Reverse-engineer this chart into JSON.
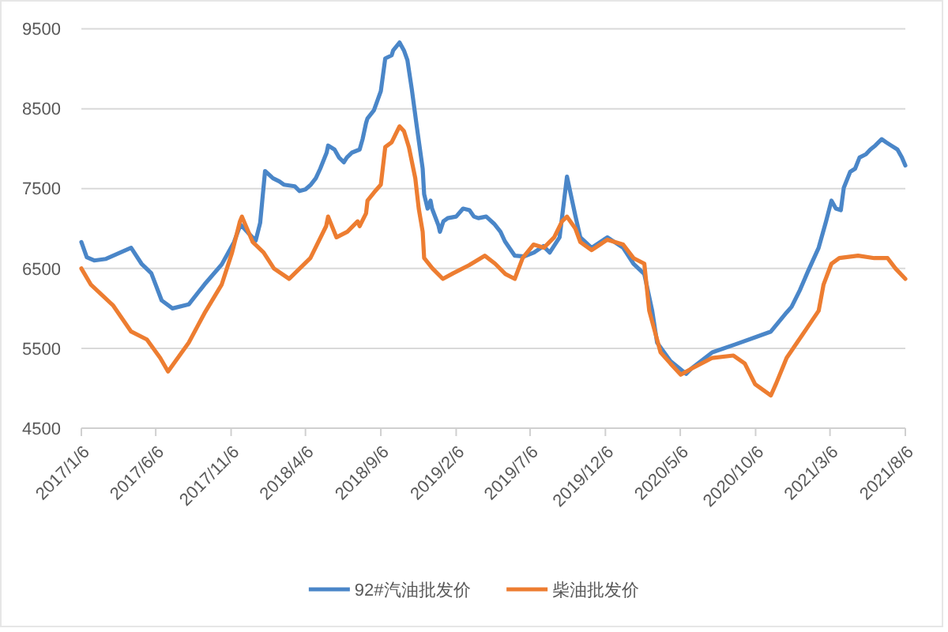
{
  "chart_data": {
    "type": "line",
    "xlim": [
      "2017-01-06",
      "2021-08-06"
    ],
    "xticks": [
      {
        "value": "2017-01-06",
        "label": "2017/1/6"
      },
      {
        "value": "2017-06-06",
        "label": "2017/6/6"
      },
      {
        "value": "2017-11-06",
        "label": "2017/11/6"
      },
      {
        "value": "2018-04-06",
        "label": "2018/4/6"
      },
      {
        "value": "2018-09-06",
        "label": "2018/9/6"
      },
      {
        "value": "2019-02-06",
        "label": "2019/2/6"
      },
      {
        "value": "2019-07-06",
        "label": "2019/7/6"
      },
      {
        "value": "2019-12-06",
        "label": "2019/12/6"
      },
      {
        "value": "2020-05-06",
        "label": "2020/5/6"
      },
      {
        "value": "2020-10-06",
        "label": "2020/10/6"
      },
      {
        "value": "2021-03-06",
        "label": "2021/3/6"
      },
      {
        "value": "2021-08-06",
        "label": "2021/8/6"
      }
    ],
    "ylim": [
      4500,
      9500
    ],
    "yticks": [
      4500,
      5500,
      6500,
      7500,
      8500,
      9500
    ],
    "grid": "y",
    "legend": "bottom",
    "line_style": "solid",
    "series": [
      {
        "name": "92#汽油批发价",
        "color": "#4a86c8",
        "x": [
          "2017-01-06",
          "2017-01-17",
          "2017-02-01",
          "2017-02-25",
          "2017-04-17",
          "2017-05-08",
          "2017-05-28",
          "2017-06-18",
          "2017-07-10",
          "2017-08-12",
          "2017-09-13",
          "2017-10-18",
          "2017-11-12",
          "2017-11-25",
          "2017-12-10",
          "2017-12-26",
          "2018-01-04",
          "2018-01-14",
          "2018-01-30",
          "2018-02-12",
          "2018-02-21",
          "2018-03-15",
          "2018-03-25",
          "2018-04-06",
          "2018-04-17",
          "2018-04-27",
          "2018-05-06",
          "2018-05-19",
          "2018-05-22",
          "2018-06-04",
          "2018-06-13",
          "2018-06-23",
          "2018-06-29",
          "2018-07-09",
          "2018-07-25",
          "2018-07-31",
          "2018-08-07",
          "2018-08-10",
          "2018-08-23",
          "2018-09-06",
          "2018-09-15",
          "2018-09-28",
          "2018-10-01",
          "2018-10-14",
          "2018-10-23",
          "2018-10-30",
          "2018-11-08",
          "2018-11-18",
          "2018-11-30",
          "2018-12-03",
          "2018-12-10",
          "2018-12-16",
          "2018-12-19",
          "2019-01-01",
          "2019-01-04",
          "2019-01-11",
          "2019-01-20",
          "2019-02-06",
          "2019-02-20",
          "2019-03-05",
          "2019-03-14",
          "2019-03-23",
          "2019-04-08",
          "2019-04-24",
          "2019-05-07",
          "2019-05-16",
          "2019-06-05",
          "2019-06-24",
          "2019-07-14",
          "2019-08-02",
          "2019-08-15",
          "2019-09-04",
          "2019-09-19",
          "2019-10-06",
          "2019-10-16",
          "2019-11-08",
          "2019-12-10",
          "2020-01-11",
          "2020-02-01",
          "2020-02-23",
          "2020-03-10",
          "2020-03-20",
          "2020-04-16",
          "2020-05-18",
          "2020-05-29",
          "2020-07-10",
          "2020-08-26",
          "2020-10-06",
          "2020-11-06",
          "2020-12-08",
          "2020-12-18",
          "2021-01-04",
          "2021-01-20",
          "2021-02-11",
          "2021-02-26",
          "2021-03-09",
          "2021-03-18",
          "2021-03-28",
          "2021-04-03",
          "2021-04-16",
          "2021-04-26",
          "2021-05-05",
          "2021-05-18",
          "2021-05-27",
          "2021-06-06",
          "2021-06-19",
          "2021-06-28",
          "2021-07-08",
          "2021-07-21",
          "2021-07-30",
          "2021-08-06"
        ],
        "values": [
          6830,
          6640,
          6600,
          6620,
          6760,
          6560,
          6440,
          6100,
          6000,
          6050,
          6300,
          6550,
          6830,
          7050,
          6950,
          6850,
          7070,
          7720,
          7630,
          7590,
          7550,
          7530,
          7470,
          7490,
          7550,
          7630,
          7750,
          7950,
          8040,
          7990,
          7890,
          7830,
          7890,
          7950,
          7990,
          8120,
          8320,
          8380,
          8480,
          8720,
          9130,
          9170,
          9230,
          9330,
          9230,
          9110,
          8740,
          8280,
          7750,
          7430,
          7250,
          7350,
          7250,
          7040,
          6960,
          7090,
          7130,
          7150,
          7250,
          7230,
          7150,
          7130,
          7150,
          7060,
          6960,
          6840,
          6660,
          6650,
          6700,
          6780,
          6700,
          6890,
          7650,
          7160,
          6890,
          6760,
          6890,
          6760,
          6560,
          6430,
          5970,
          5570,
          5340,
          5180,
          5250,
          5450,
          5550,
          5640,
          5710,
          5950,
          6020,
          6230,
          6460,
          6760,
          7090,
          7350,
          7250,
          7230,
          7510,
          7710,
          7750,
          7890,
          7930,
          7990,
          8040,
          8120,
          8080,
          8040,
          7990,
          7890,
          7790
        ]
      },
      {
        "name": "柴油批发价",
        "color": "#ed7d31",
        "x": [
          "2017-01-06",
          "2017-01-25",
          "2017-03-11",
          "2017-04-17",
          "2017-05-19",
          "2017-06-15",
          "2017-07-01",
          "2017-08-12",
          "2017-09-13",
          "2017-10-18",
          "2017-11-08",
          "2017-11-24",
          "2017-11-28",
          "2017-12-11",
          "2017-12-20",
          "2018-01-11",
          "2018-02-01",
          "2018-03-04",
          "2018-04-16",
          "2018-05-18",
          "2018-05-22",
          "2018-06-08",
          "2018-06-30",
          "2018-07-21",
          "2018-07-25",
          "2018-08-07",
          "2018-08-10",
          "2018-08-23",
          "2018-09-06",
          "2018-09-15",
          "2018-09-28",
          "2018-10-14",
          "2018-10-23",
          "2018-11-02",
          "2018-11-15",
          "2018-11-22",
          "2018-11-30",
          "2018-12-03",
          "2018-12-20",
          "2019-01-10",
          "2019-01-31",
          "2019-03-04",
          "2019-04-05",
          "2019-04-26",
          "2019-05-17",
          "2019-06-05",
          "2019-06-21",
          "2019-07-13",
          "2019-08-03",
          "2019-08-24",
          "2019-09-09",
          "2019-09-19",
          "2019-10-06",
          "2019-10-16",
          "2019-11-08",
          "2019-12-10",
          "2020-01-11",
          "2020-02-01",
          "2020-02-23",
          "2020-03-04",
          "2020-03-27",
          "2020-04-16",
          "2020-05-07",
          "2020-05-30",
          "2020-07-10",
          "2020-08-22",
          "2020-09-14",
          "2020-10-05",
          "2020-11-06",
          "2020-11-16",
          "2020-12-08",
          "2021-01-20",
          "2021-02-11",
          "2021-02-21",
          "2021-03-09",
          "2021-03-25",
          "2021-05-02",
          "2021-06-04",
          "2021-07-01",
          "2021-07-17",
          "2021-08-06"
        ],
        "values": [
          6500,
          6300,
          6040,
          5710,
          5610,
          5380,
          5210,
          5570,
          5940,
          6300,
          6700,
          7090,
          7150,
          6960,
          6830,
          6700,
          6500,
          6370,
          6630,
          7030,
          7150,
          6890,
          6960,
          7090,
          7030,
          7190,
          7350,
          7450,
          7550,
          8020,
          8080,
          8280,
          8220,
          8020,
          7630,
          7250,
          6960,
          6630,
          6500,
          6370,
          6440,
          6540,
          6660,
          6560,
          6430,
          6370,
          6630,
          6800,
          6760,
          6890,
          7090,
          7150,
          7000,
          6830,
          6730,
          6860,
          6800,
          6630,
          6560,
          5970,
          5450,
          5310,
          5170,
          5250,
          5380,
          5410,
          5310,
          5050,
          4910,
          5050,
          5380,
          5770,
          5970,
          6300,
          6560,
          6630,
          6660,
          6630,
          6630,
          6500,
          6370
        ]
      }
    ]
  }
}
